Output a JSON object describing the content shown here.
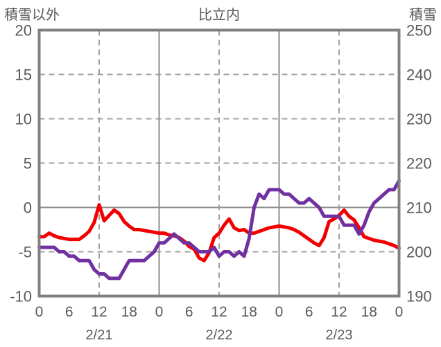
{
  "header": {
    "left_axis_title": "積雪以外",
    "chart_title": "比立内",
    "right_axis_title": "積雪"
  },
  "chart_data": {
    "type": "line",
    "title": "比立内",
    "station": "比立内",
    "grid_solid_color": "#8c8c8c",
    "grid_dashed_color": "#a0a0a0",
    "border_color": "#808080",
    "text_color": "#595959",
    "legend": "none",
    "x": {
      "hours": 72,
      "tick_interval": 6,
      "tick_labels": [
        "0",
        "6",
        "12",
        "18",
        "0",
        "6",
        "12",
        "18",
        "0",
        "6",
        "12",
        "18",
        "0"
      ],
      "date_labels": [
        "2/21",
        "2/22",
        "2/23"
      ]
    },
    "left_axis": {
      "title": "積雪以外",
      "min": -10,
      "max": 20,
      "ticks": [
        20,
        15,
        10,
        5,
        0,
        -5,
        -10
      ]
    },
    "right_axis": {
      "title": "積雪",
      "min": 190,
      "max": 250,
      "ticks": [
        250,
        240,
        230,
        220,
        210,
        200,
        190
      ]
    },
    "series": [
      {
        "id": "red",
        "axis": "left",
        "color": "#f20000",
        "values": [
          -3.3,
          -3.3,
          -2.9,
          -3.2,
          -3.4,
          -3.5,
          -3.6,
          -3.6,
          -3.6,
          -3.2,
          -2.7,
          -1.7,
          0.3,
          -1.5,
          -0.9,
          -0.3,
          -0.7,
          -1.6,
          -2.1,
          -2.5,
          -2.5,
          -2.6,
          -2.7,
          -2.8,
          -2.9,
          -2.9,
          -3.1,
          -3.2,
          -3.4,
          -3.8,
          -4.4,
          -4.7,
          -5.7,
          -6.0,
          -5.1,
          -3.4,
          -2.9,
          -2.0,
          -1.3,
          -2.3,
          -2.6,
          -2.5,
          -2.9,
          -2.9,
          -2.7,
          -2.5,
          -2.3,
          -2.2,
          -2.1,
          -2.2,
          -2.3,
          -2.5,
          -2.8,
          -3.2,
          -3.6,
          -4.0,
          -4.3,
          -3.4,
          -1.6,
          -1.3,
          -0.9,
          -0.3,
          -1.0,
          -1.4,
          -2.3,
          -3.3,
          -3.5,
          -3.7,
          -3.8,
          -3.9,
          -4.1,
          -4.3,
          -4.6
        ]
      },
      {
        "id": "purple",
        "axis": "right",
        "color": "#7030a0",
        "values": [
          201,
          201,
          201,
          201,
          200,
          200,
          199,
          199,
          198,
          198,
          198,
          196,
          195,
          195,
          194,
          194,
          194,
          196,
          198,
          198,
          198,
          198,
          199,
          200,
          202,
          202,
          203,
          204,
          203,
          202,
          202,
          201,
          200,
          200,
          200,
          201,
          199,
          200,
          200,
          199,
          200,
          199,
          203,
          210,
          213,
          212,
          214,
          214,
          214,
          213,
          213,
          212,
          211,
          211,
          212,
          211,
          210,
          208,
          208,
          208,
          208,
          206,
          206,
          206,
          204,
          206,
          209,
          211,
          212,
          213,
          214,
          214,
          216
        ]
      }
    ]
  }
}
